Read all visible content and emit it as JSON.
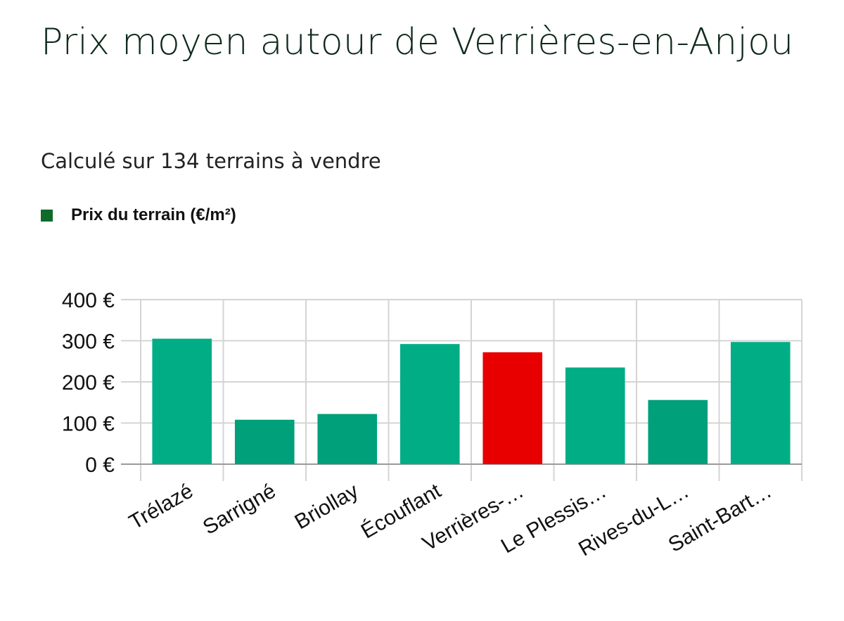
{
  "chart_data": {
    "type": "bar",
    "title": "Prix moyen autour de Verrières-en-Anjou",
    "subtitle": "Calculé sur 134 terrains à vendre",
    "legend": [
      {
        "name": "Prix du terrain (€/m²)",
        "color": "#0e6b2c"
      }
    ],
    "legend_position": "top-left",
    "categories": [
      "Trélazé",
      "Sarrigné",
      "Briollay",
      "Écouflant",
      "Verrières-…",
      "Le Plessis…",
      "Rives-du-L…",
      "Saint-Bart…"
    ],
    "series": [
      {
        "name": "Prix du terrain (€/m²)",
        "values": [
          305,
          108,
          122,
          292,
          272,
          235,
          156,
          297
        ]
      }
    ],
    "bar_colors": [
      "#00ad85",
      "#00a07a",
      "#00a07a",
      "#00ad85",
      "#e80000",
      "#00ad85",
      "#00a07a",
      "#00ad85"
    ],
    "highlight_index": 4,
    "yticks": [
      "0 €",
      "100 €",
      "200 €",
      "300 €",
      "400 €"
    ],
    "ylim": [
      0,
      400
    ],
    "grid": true,
    "xlabel": "",
    "ylabel": ""
  }
}
